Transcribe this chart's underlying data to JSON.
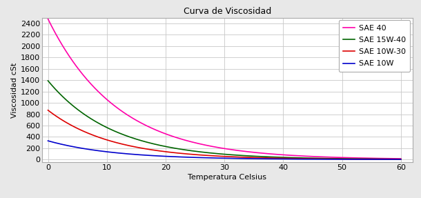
{
  "title": "Curva de Viscosidad",
  "xlabel": "Temperatura Celsius",
  "ylabel": "Viscosidad cSt",
  "xlim": [
    -1,
    62
  ],
  "ylim": [
    -50,
    2500
  ],
  "yticks": [
    0,
    200,
    400,
    600,
    800,
    1000,
    1200,
    1400,
    1600,
    1800,
    2000,
    2200,
    2400
  ],
  "xticks": [
    0,
    10,
    20,
    30,
    40,
    50,
    60
  ],
  "background_color": "#e8e8e8",
  "plot_bg_color": "#ffffff",
  "grid_color": "#c8c8c8",
  "border_color": "#aaaaaa",
  "series": [
    {
      "label": "SAE 40",
      "color": "#ff00aa",
      "a": 2480,
      "b": 0.085
    },
    {
      "label": "SAE 15W-40",
      "color": "#006400",
      "a": 1390,
      "b": 0.09
    },
    {
      "label": "SAE 10W-30",
      "color": "#dd0000",
      "a": 870,
      "b": 0.092
    },
    {
      "label": "SAE 10W",
      "color": "#0000cc",
      "a": 330,
      "b": 0.088
    }
  ],
  "title_fontsize": 9,
  "label_fontsize": 8,
  "tick_fontsize": 8,
  "legend_fontsize": 8,
  "linewidth": 1.2
}
